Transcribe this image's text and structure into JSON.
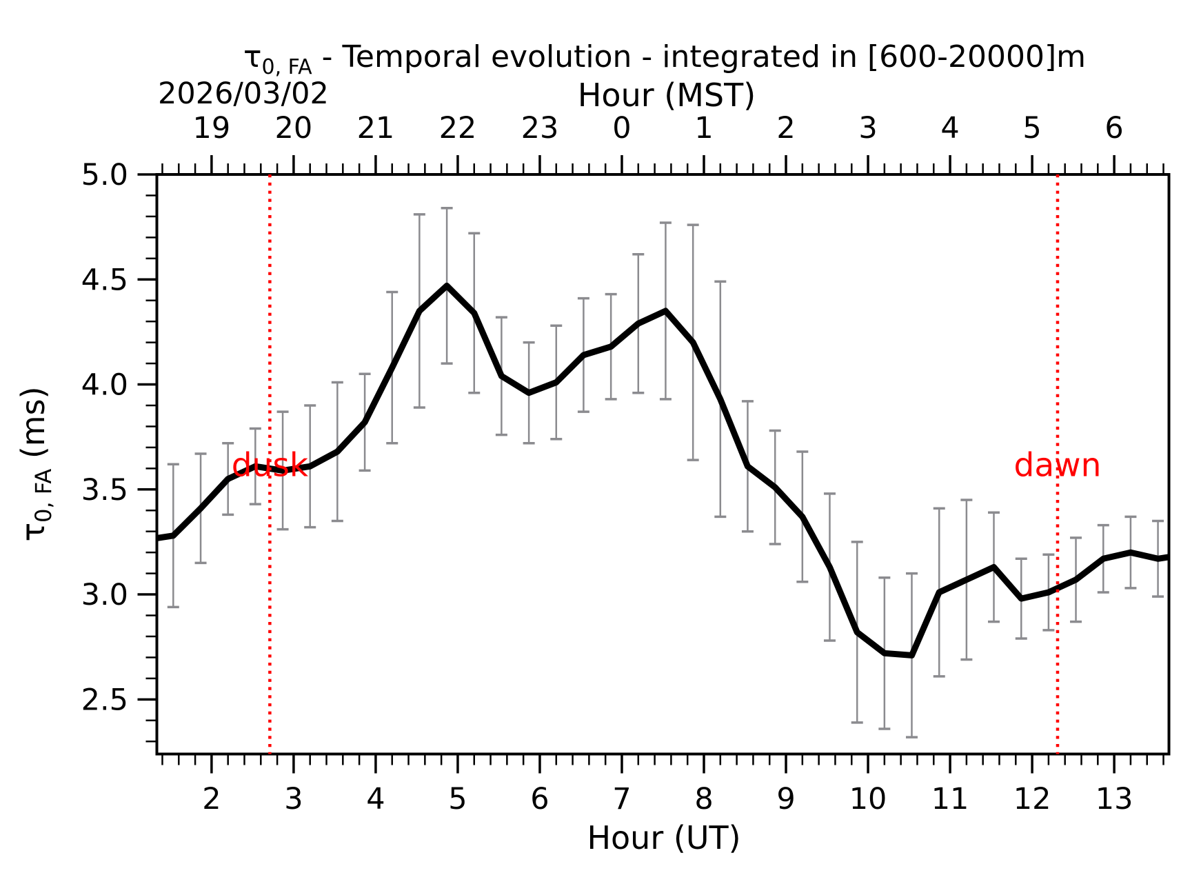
{
  "figure": {
    "title": {
      "tau_symbol": "τ",
      "tau_subscript": "0, FA",
      "text_after": " - Temporal evolution - integrated in [600-20000]m"
    },
    "date_label": "2026/03/02",
    "background_color": "#ffffff"
  },
  "axes": {
    "top": {
      "label": "Hour (MST)",
      "tick_labels": [
        "19",
        "20",
        "21",
        "22",
        "23",
        "0",
        "1",
        "2",
        "3",
        "4",
        "5",
        "6"
      ]
    },
    "bottom": {
      "label": "Hour (UT)",
      "tick_labels": [
        "2",
        "3",
        "4",
        "5",
        "6",
        "7",
        "8",
        "9",
        "10",
        "11",
        "12",
        "13"
      ]
    },
    "left": {
      "label_tau": "τ",
      "label_subscript": "0, FA",
      "label_units": " (ms)",
      "tick_labels": [
        "5.0",
        "4.5",
        "4.0",
        "3.5",
        "3.0",
        "2.5"
      ]
    }
  },
  "annotations": [
    {
      "name": "dusk",
      "label": "dusk",
      "x_hour": 2.71,
      "label_y_value": 3.62,
      "color": "#ff0000"
    },
    {
      "name": "dawn",
      "label": "dawn",
      "x_hour": 12.31,
      "label_y_value": 3.62,
      "color": "#ff0000"
    }
  ],
  "chart_data": {
    "type": "line",
    "title": "τ0,FA - Temporal evolution - integrated in [600-20000]m",
    "xlabel": "Hour (UT)",
    "xlabel_top": "Hour (MST)",
    "ylabel": "τ0,FA (ms)",
    "xlim": [
      1.333,
      13.667
    ],
    "ylim": [
      2.24,
      5.0
    ],
    "x_major_ticks": [
      2,
      3,
      4,
      5,
      6,
      7,
      8,
      9,
      10,
      11,
      12,
      13
    ],
    "x_minor_step": 0.2,
    "y_major_ticks": [
      5.0,
      4.5,
      4.0,
      3.5,
      3.0,
      2.5
    ],
    "y_minor_step": 0.1,
    "mst_utc_offset_hours": -7,
    "grid": false,
    "legend": null,
    "x": [
      1.2,
      1.533,
      1.867,
      2.2,
      2.533,
      2.867,
      3.2,
      3.533,
      3.867,
      4.2,
      4.533,
      4.867,
      5.2,
      5.533,
      5.867,
      6.2,
      6.533,
      6.867,
      7.2,
      7.533,
      7.867,
      8.2,
      8.533,
      8.867,
      9.2,
      9.533,
      9.867,
      10.2,
      10.533,
      10.867,
      11.2,
      11.533,
      11.867,
      12.2,
      12.533,
      12.867,
      13.2,
      13.533,
      13.867
    ],
    "y": [
      3.26,
      3.28,
      3.41,
      3.55,
      3.61,
      3.59,
      3.61,
      3.68,
      3.82,
      4.08,
      4.35,
      4.47,
      4.34,
      4.04,
      3.96,
      4.01,
      4.14,
      4.18,
      4.29,
      4.35,
      4.2,
      3.93,
      3.61,
      3.51,
      3.37,
      3.13,
      2.82,
      2.72,
      2.71,
      3.01,
      3.07,
      3.13,
      2.98,
      3.01,
      3.07,
      3.17,
      3.2,
      3.17,
      3.19
    ],
    "yerr": [
      null,
      0.34,
      0.26,
      0.17,
      0.18,
      0.28,
      0.29,
      0.33,
      0.23,
      0.36,
      0.46,
      0.37,
      0.38,
      0.28,
      0.24,
      0.27,
      0.27,
      0.25,
      0.33,
      0.42,
      0.56,
      0.56,
      0.31,
      0.27,
      0.31,
      0.35,
      0.43,
      0.36,
      0.39,
      0.4,
      0.38,
      0.26,
      0.19,
      0.18,
      0.2,
      0.16,
      0.17,
      0.18,
      null
    ],
    "line_color": "#000000",
    "line_width": 9,
    "errorbar_color": "#8b8b8f",
    "annotation_color": "#ff0000"
  }
}
